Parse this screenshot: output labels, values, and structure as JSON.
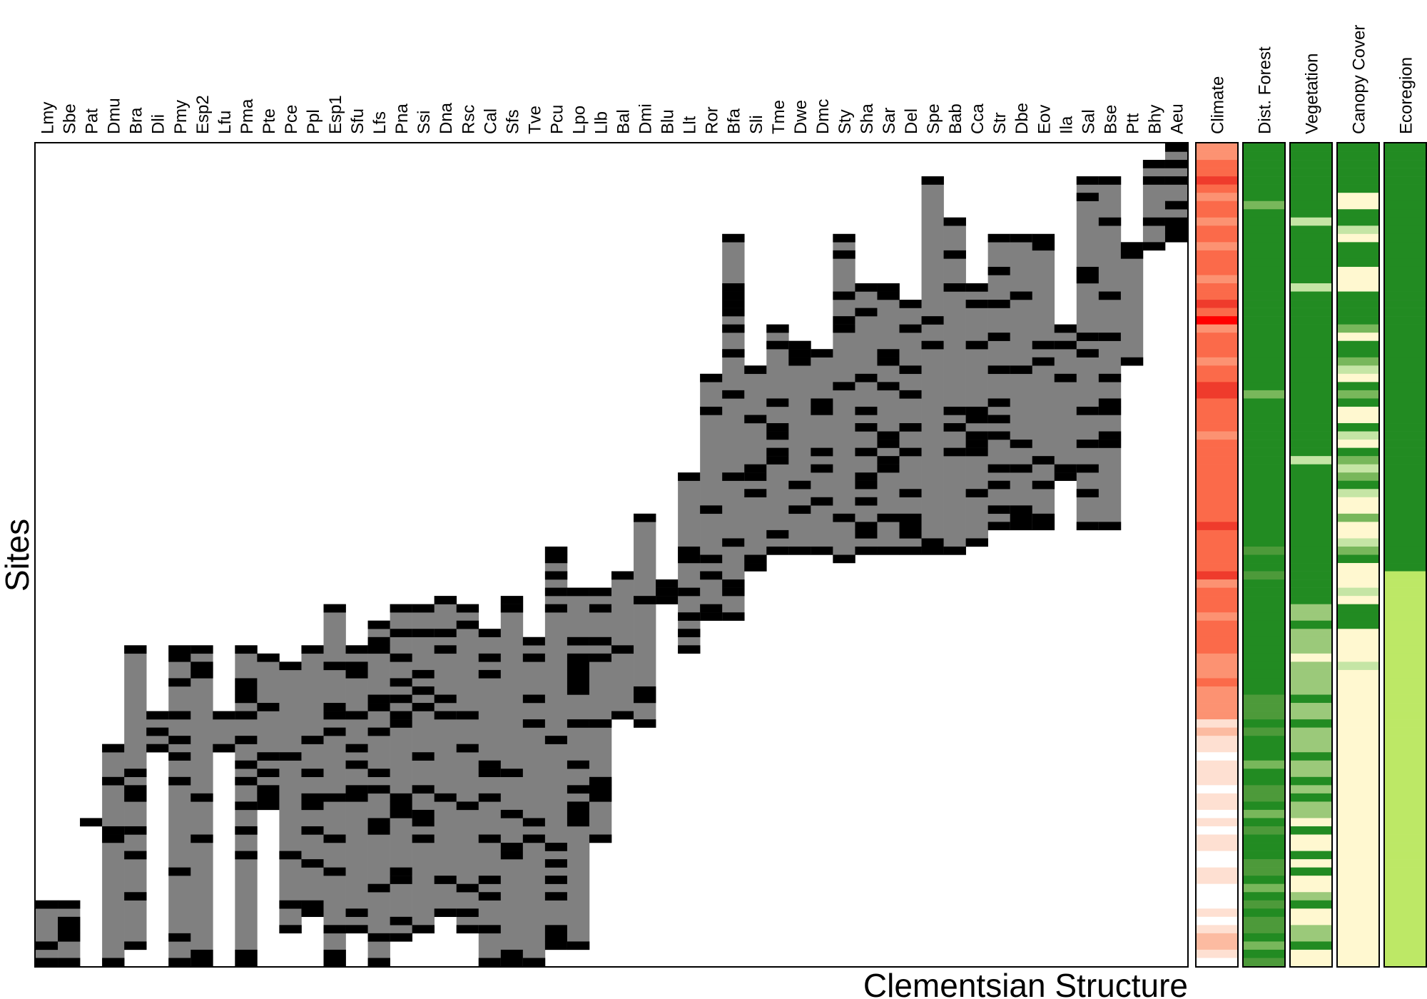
{
  "chart_data": {
    "type": "heatmap",
    "xlabel": "Clementsian Structure",
    "ylabel": "Sites",
    "species": [
      "Lmy",
      "Sbe",
      "Pat",
      "Dmu",
      "Bra",
      "Dli",
      "Pmy",
      "Esp2",
      "Lfu",
      "Pma",
      "Pte",
      "Pce",
      "Ppl",
      "Esp1",
      "Sfu",
      "Lfs",
      "Pna",
      "Ssi",
      "Dna",
      "Rsc",
      "Cal",
      "Sfs",
      "Tve",
      "Pcu",
      "Lpo",
      "Llb",
      "Bal",
      "Dmi",
      "Blu",
      "Llt",
      "Ror",
      "Bfa",
      "Sli",
      "Tme",
      "Dwe",
      "Dmc",
      "Sty",
      "Sha",
      "Sar",
      "Del",
      "Spe",
      "Bab",
      "Cca",
      "Str",
      "Dbe",
      "Eov",
      "Ila",
      "Sal",
      "Bse",
      "Ptt",
      "Bhy",
      "Aeu"
    ],
    "n_sites": 100,
    "cell_states": {
      "absent": "#ffffff",
      "present": "#808080",
      "boundary": "#000000"
    },
    "species_ranges": [
      [
        92,
        100
      ],
      [
        92,
        100
      ],
      [
        82,
        83
      ],
      [
        73,
        100
      ],
      [
        61,
        98
      ],
      [
        69,
        74
      ],
      [
        61,
        100
      ],
      [
        61,
        100
      ],
      [
        69,
        74
      ],
      [
        61,
        100
      ],
      [
        62,
        81
      ],
      [
        63,
        96
      ],
      [
        61,
        94
      ],
      [
        56,
        100
      ],
      [
        61,
        96
      ],
      [
        58,
        100
      ],
      [
        56,
        97
      ],
      [
        56,
        96
      ],
      [
        55,
        94
      ],
      [
        56,
        96
      ],
      [
        59,
        100
      ],
      [
        55,
        100
      ],
      [
        60,
        100
      ],
      [
        49,
        98
      ],
      [
        54,
        98
      ],
      [
        54,
        85
      ],
      [
        52,
        70
      ],
      [
        45,
        71
      ],
      [
        53,
        56
      ],
      [
        40,
        62
      ],
      [
        28,
        58
      ],
      [
        11,
        58
      ],
      [
        27,
        52
      ],
      [
        22,
        50
      ],
      [
        24,
        50
      ],
      [
        25,
        50
      ],
      [
        11,
        51
      ],
      [
        17,
        50
      ],
      [
        17,
        50
      ],
      [
        19,
        50
      ],
      [
        4,
        50
      ],
      [
        9,
        50
      ],
      [
        17,
        49
      ],
      [
        11,
        47
      ],
      [
        11,
        47
      ],
      [
        11,
        47
      ],
      [
        22,
        41
      ],
      [
        4,
        47
      ],
      [
        4,
        47
      ],
      [
        12,
        27
      ],
      [
        2,
        13
      ],
      [
        0,
        12
      ]
    ],
    "side_bars": [
      {
        "label": "Climate",
        "colors": [
          "#ffffff",
          "#fee0d2",
          "#fcbba1",
          "#fc9272",
          "#fb6a4a",
          "#ef3b2c",
          "#ff0000"
        ],
        "levels": [
          3,
          3,
          4,
          4,
          5,
          4,
          3,
          4,
          4,
          3,
          4,
          4,
          3,
          4,
          4,
          4,
          3,
          4,
          4,
          5,
          4,
          6,
          3,
          4,
          4,
          4,
          3,
          4,
          4,
          5,
          5,
          4,
          4,
          4,
          4,
          3,
          4,
          4,
          4,
          4,
          4,
          4,
          4,
          4,
          4,
          4,
          5,
          4,
          4,
          4,
          4,
          4,
          5,
          3,
          4,
          4,
          4,
          3,
          4,
          4,
          4,
          4,
          3,
          3,
          3,
          4,
          3,
          3,
          3,
          3,
          1,
          2,
          1,
          1,
          0,
          1,
          1,
          1,
          0,
          1,
          1,
          0,
          1,
          0,
          1,
          1,
          0,
          0,
          1,
          1,
          0,
          0,
          0,
          1,
          0,
          1,
          2,
          2,
          1,
          0
        ]
      },
      {
        "label": "Dist. Forest",
        "colors": [
          "#c5e5a5",
          "#a1d47f",
          "#78b75b",
          "#4d9a3a",
          "#228b22"
        ],
        "levels": [
          4,
          4,
          4,
          4,
          4,
          4,
          4,
          2,
          4,
          4,
          4,
          4,
          4,
          4,
          4,
          4,
          4,
          4,
          4,
          4,
          4,
          4,
          4,
          4,
          4,
          4,
          4,
          4,
          4,
          4,
          2,
          4,
          4,
          4,
          4,
          4,
          4,
          4,
          4,
          4,
          4,
          4,
          4,
          4,
          4,
          4,
          4,
          4,
          4,
          3,
          4,
          4,
          3,
          4,
          4,
          4,
          4,
          4,
          4,
          4,
          4,
          4,
          4,
          4,
          4,
          4,
          4,
          3,
          3,
          3,
          4,
          3,
          4,
          4,
          4,
          2,
          4,
          4,
          3,
          3,
          4,
          2,
          4,
          3,
          4,
          4,
          4,
          3,
          3,
          4,
          2,
          4,
          3,
          4,
          3,
          3,
          4,
          2,
          4,
          3
        ]
      },
      {
        "label": "Vegetation",
        "colors": [
          "#fff8d0",
          "#c5e5a5",
          "#9bc97a",
          "#228b22"
        ],
        "levels": [
          3,
          3,
          3,
          3,
          3,
          3,
          3,
          3,
          3,
          1,
          3,
          3,
          3,
          3,
          3,
          3,
          3,
          1,
          3,
          3,
          3,
          3,
          3,
          3,
          3,
          3,
          3,
          3,
          3,
          3,
          3,
          3,
          3,
          3,
          3,
          3,
          3,
          3,
          1,
          3,
          3,
          3,
          3,
          3,
          3,
          3,
          3,
          3,
          3,
          3,
          3,
          3,
          3,
          3,
          3,
          3,
          2,
          2,
          3,
          2,
          2,
          2,
          0,
          2,
          2,
          2,
          2,
          3,
          2,
          2,
          3,
          2,
          2,
          2,
          3,
          2,
          2,
          3,
          2,
          3,
          2,
          2,
          0,
          3,
          0,
          0,
          3,
          0,
          3,
          0,
          0,
          2,
          3,
          0,
          0,
          2,
          2,
          3,
          0,
          0
        ]
      },
      {
        "label": "Canopy Cover",
        "colors": [
          "#fff8d0",
          "#c5e5a5",
          "#78b75b",
          "#228b22"
        ],
        "levels": [
          3,
          3,
          3,
          3,
          3,
          3,
          0,
          0,
          3,
          3,
          1,
          0,
          3,
          3,
          3,
          0,
          0,
          0,
          3,
          3,
          3,
          3,
          2,
          0,
          3,
          3,
          2,
          1,
          0,
          3,
          2,
          3,
          0,
          0,
          3,
          1,
          0,
          3,
          2,
          1,
          2,
          3,
          1,
          0,
          0,
          2,
          0,
          0,
          1,
          2,
          3,
          0,
          0,
          0,
          1,
          0,
          3,
          3,
          3,
          0,
          0,
          0,
          0,
          1,
          0,
          0,
          0,
          0,
          0,
          0,
          0,
          0,
          0,
          0,
          0,
          0,
          0,
          0,
          0,
          0,
          0,
          0,
          0,
          0,
          0,
          0,
          0,
          0,
          0,
          0,
          0,
          0,
          0,
          0,
          0,
          0,
          0,
          0,
          0,
          0
        ]
      },
      {
        "label": "Ecoregion",
        "colors": [
          "#228b22",
          "#bde866"
        ],
        "levels": [
          0,
          0,
          0,
          0,
          0,
          0,
          0,
          0,
          0,
          0,
          0,
          0,
          0,
          0,
          0,
          0,
          0,
          0,
          0,
          0,
          0,
          0,
          0,
          0,
          0,
          0,
          0,
          0,
          0,
          0,
          0,
          0,
          0,
          0,
          0,
          0,
          0,
          0,
          0,
          0,
          0,
          0,
          0,
          0,
          0,
          0,
          0,
          0,
          0,
          0,
          0,
          0,
          1,
          1,
          1,
          1,
          1,
          1,
          1,
          1,
          1,
          1,
          1,
          1,
          1,
          1,
          1,
          1,
          1,
          1,
          1,
          1,
          1,
          1,
          1,
          1,
          1,
          1,
          1,
          1,
          1,
          1,
          1,
          1,
          1,
          1,
          1,
          1,
          1,
          1,
          1,
          1,
          1,
          1,
          1,
          1,
          1,
          1,
          1,
          1
        ]
      }
    ]
  }
}
